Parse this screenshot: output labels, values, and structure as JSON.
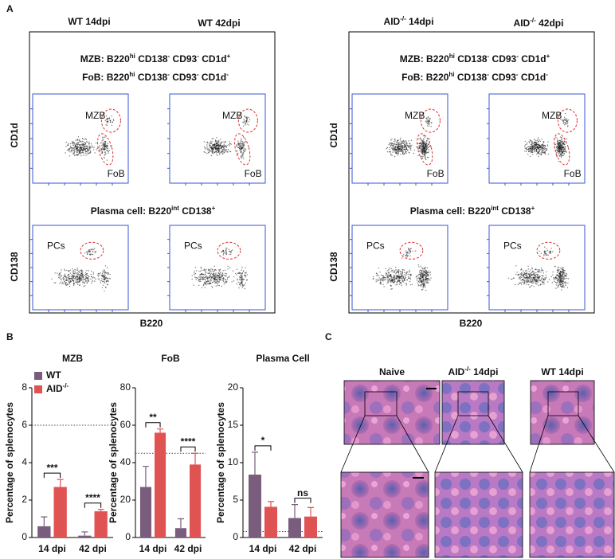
{
  "panel_a": {
    "letter": "A",
    "boxes": [
      {
        "headers": [
          [
            {
              "text": "WT 14dpi"
            }
          ],
          [
            {
              "text": "WT 42dpi"
            }
          ]
        ],
        "gate_lines": [
          [
            {
              "text": "MZB: B220"
            },
            {
              "sup": "hi"
            },
            {
              "text": " CD138"
            },
            {
              "sup": "-"
            },
            {
              "text": "  CD93"
            },
            {
              "sup": "-"
            },
            {
              "text": " CD1d"
            },
            {
              "sup": "+"
            }
          ],
          [
            {
              "text": "FoB: B220"
            },
            {
              "sup": "hi"
            },
            {
              "text": " CD138"
            },
            {
              "sup": "-"
            },
            {
              "text": "  CD93"
            },
            {
              "sup": "-"
            },
            {
              "text": " CD1d"
            },
            {
              "sup": "-"
            }
          ]
        ],
        "plasma_line": [
          {
            "text": "Plasma cell: B220"
          },
          {
            "sup": "int"
          },
          {
            "text": "  CD138"
          },
          {
            "sup": "+"
          }
        ],
        "x_label": "B220"
      },
      {
        "headers": [
          [
            {
              "text": "AID"
            },
            {
              "sup": "-/-"
            },
            {
              "text": " 14dpi"
            }
          ],
          [
            {
              "text": "AID"
            },
            {
              "sup": "-/-"
            },
            {
              "text": " 42dpi"
            }
          ]
        ],
        "gate_lines": [
          [
            {
              "text": "MZB: B220"
            },
            {
              "sup": "hi"
            },
            {
              "text": " CD138"
            },
            {
              "sup": "-"
            },
            {
              "text": "  CD93"
            },
            {
              "sup": "-"
            },
            {
              "text": " CD1d"
            },
            {
              "sup": "+"
            }
          ],
          [
            {
              "text": "FoB: B220"
            },
            {
              "sup": "hi"
            },
            {
              "text": " CD138"
            },
            {
              "sup": "-"
            },
            {
              "text": "  CD93"
            },
            {
              "sup": "-"
            },
            {
              "text": " CD1d"
            },
            {
              "sup": "-"
            }
          ]
        ],
        "plasma_line": [
          {
            "text": "Plasma cell: B220"
          },
          {
            "sup": "int"
          },
          {
            "text": "  CD138"
          },
          {
            "sup": "+"
          }
        ],
        "x_label": "B220"
      }
    ],
    "y_labels": [
      "CD1d",
      "CD138"
    ],
    "gate_labels": [
      "MZB",
      "FoB",
      "PCs"
    ]
  },
  "panel_b": {
    "letter": "B"
  },
  "chart_data": [
    {
      "type": "bar",
      "title": "MZB",
      "y_label": "Percentage of splenocytes",
      "categories": [
        "14 dpi",
        "42 dpi"
      ],
      "series": [
        {
          "name": "WT",
          "color": "#7a5c7c",
          "values": [
            0.6,
            0.1
          ],
          "errors": [
            0.5,
            0.2
          ]
        },
        {
          "name": "AID",
          "name_sup": "-/-",
          "color": "#e05353",
          "values": [
            2.7,
            1.4
          ],
          "errors": [
            0.4,
            0.1
          ]
        }
      ],
      "ylim": [
        0,
        8
      ],
      "yticks": [
        0,
        2,
        4,
        6,
        8
      ],
      "ref_line": 6,
      "significance": [
        "***",
        "****"
      ],
      "legend": "upper-left"
    },
    {
      "type": "bar",
      "title": "FoB",
      "y_label": "Percentage of splenocytes",
      "categories": [
        "14 dpi",
        "42 dpi"
      ],
      "series": [
        {
          "name": "WT",
          "color": "#7a5c7c",
          "values": [
            27,
            5
          ],
          "errors": [
            11,
            5
          ]
        },
        {
          "name": "AID",
          "name_sup": "-/-",
          "color": "#e05353",
          "values": [
            56,
            39
          ],
          "errors": [
            2,
            6
          ]
        }
      ],
      "ylim": [
        0,
        80
      ],
      "yticks": [
        0,
        20,
        40,
        60,
        80
      ],
      "ref_line": 45,
      "significance": [
        "**",
        "****"
      ]
    },
    {
      "type": "bar",
      "title": "Plasma Cell",
      "y_label": "Percentage of splenocytes",
      "categories": [
        "14 dpi",
        "42 dpi"
      ],
      "series": [
        {
          "name": "WT",
          "color": "#7a5c7c",
          "values": [
            8.4,
            2.6
          ],
          "errors": [
            3,
            1.8
          ]
        },
        {
          "name": "AID",
          "name_sup": "-/-",
          "color": "#e05353",
          "values": [
            4.1,
            2.8
          ],
          "errors": [
            0.7,
            1.2
          ]
        }
      ],
      "ylim": [
        0,
        20
      ],
      "yticks": [
        0,
        5,
        10,
        15,
        20
      ],
      "ref_line": 0.8,
      "significance": [
        "*",
        "ns"
      ]
    }
  ],
  "panel_c": {
    "letter": "C",
    "labels": [
      [
        {
          "text": "Naive"
        }
      ],
      [
        {
          "text": "AID"
        },
        {
          "sup": "-/-"
        },
        {
          "text": " 14dpi"
        }
      ],
      [
        {
          "text": "WT 14dpi"
        }
      ]
    ]
  }
}
